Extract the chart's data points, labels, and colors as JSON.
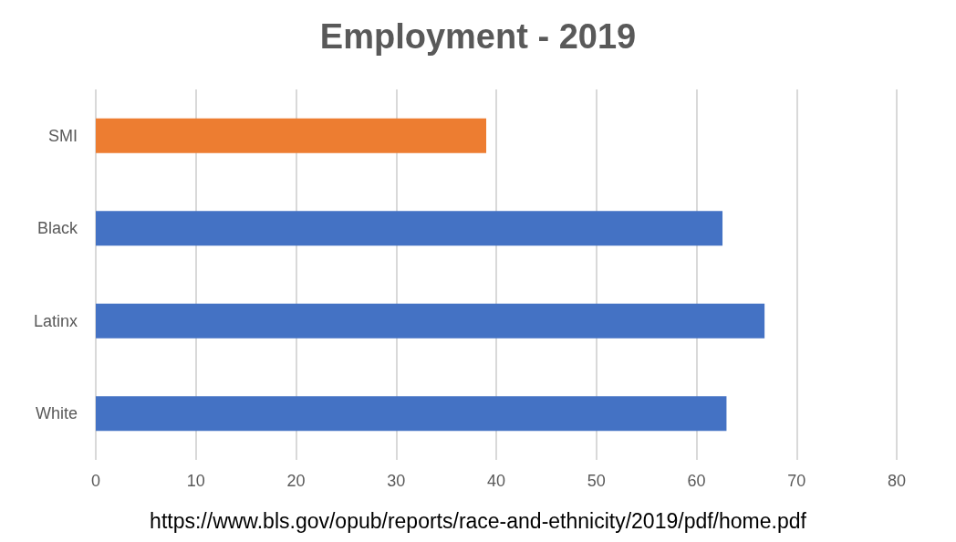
{
  "chart_data": {
    "type": "bar",
    "orientation": "horizontal",
    "title": "Employment - 2019",
    "categories": [
      "SMI",
      "Black",
      "Latinx",
      "White"
    ],
    "values": [
      39.0,
      62.6,
      66.8,
      63.0
    ],
    "colors": [
      "#ed7d31",
      "#4472c4",
      "#4472c4",
      "#4472c4"
    ],
    "xlim": [
      0,
      80
    ],
    "xticks": [
      0,
      10,
      20,
      30,
      40,
      50,
      60,
      70,
      80
    ],
    "grid": "x",
    "annotations": [
      "https://www.bls.gov/opub/reports/race-and-ethnicity/2019/pdf/home.pdf"
    ]
  }
}
